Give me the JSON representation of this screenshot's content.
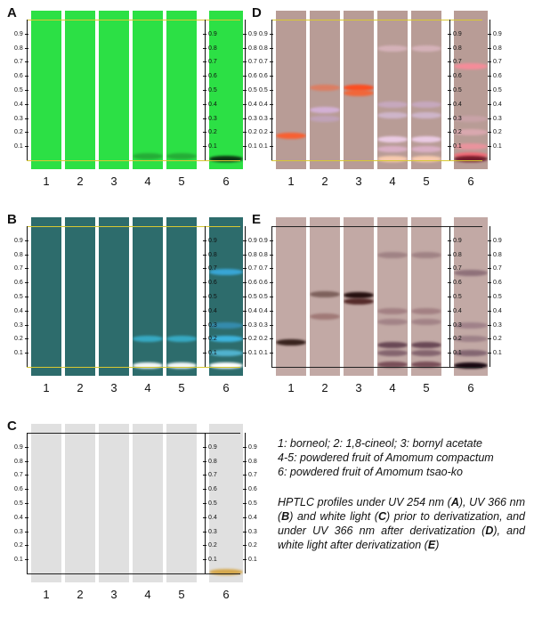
{
  "panels": [
    {
      "label": "A",
      "colors": {
        "plate": "#2ce045",
        "line": "#d8c832",
        "axis": "#111111"
      },
      "lanes": [
        {
          "number": "1",
          "bands": []
        },
        {
          "number": "2",
          "bands": []
        },
        {
          "number": "3",
          "bands": []
        },
        {
          "number": "4",
          "bands": [
            {
              "rf": 0.03,
              "color": "#1f7a2a",
              "opacity": 0.5
            }
          ]
        },
        {
          "number": "5",
          "bands": [
            {
              "rf": 0.03,
              "color": "#1f7a2a",
              "opacity": 0.5
            }
          ]
        },
        {
          "number": "6",
          "bands": [
            {
              "rf": 0.01,
              "color": "#0a2a10",
              "opacity": 0.95
            }
          ]
        }
      ]
    },
    {
      "label": "B",
      "colors": {
        "plate": "#2d6c6c",
        "line": "#d8c832",
        "axis": "#111111"
      },
      "lanes": [
        {
          "number": "1",
          "bands": []
        },
        {
          "number": "2",
          "bands": []
        },
        {
          "number": "3",
          "bands": []
        },
        {
          "number": "4",
          "bands": [
            {
              "rf": 0.2,
              "color": "#39b8d8",
              "opacity": 0.8
            },
            {
              "rf": 0.01,
              "color": "#ffffff",
              "opacity": 0.95
            }
          ]
        },
        {
          "number": "5",
          "bands": [
            {
              "rf": 0.2,
              "color": "#39b8d8",
              "opacity": 0.8
            },
            {
              "rf": 0.01,
              "color": "#ffffff",
              "opacity": 0.95
            }
          ]
        },
        {
          "number": "6",
          "bands": [
            {
              "rf": 0.68,
              "color": "#3ab0e8",
              "opacity": 0.85
            },
            {
              "rf": 0.3,
              "color": "#3aa0d8",
              "opacity": 0.6
            },
            {
              "rf": 0.2,
              "color": "#40c0f0",
              "opacity": 0.85
            },
            {
              "rf": 0.1,
              "color": "#60d0f8",
              "opacity": 0.7
            },
            {
              "rf": 0.01,
              "color": "#ffffff",
              "opacity": 1
            }
          ]
        }
      ]
    },
    {
      "label": "C",
      "colors": {
        "plate": "#e0e0e0",
        "line": "#222222",
        "axis": "#111111"
      },
      "lanes": [
        {
          "number": "1",
          "bands": []
        },
        {
          "number": "2",
          "bands": []
        },
        {
          "number": "3",
          "bands": []
        },
        {
          "number": "4",
          "bands": []
        },
        {
          "number": "5",
          "bands": []
        },
        {
          "number": "6",
          "bands": [
            {
              "rf": 0.01,
              "color": "#d4a23c",
              "opacity": 0.9
            }
          ]
        }
      ]
    },
    {
      "label": "D",
      "colors": {
        "plate": "#b89c96",
        "line": "#d8c832",
        "axis": "#111111"
      },
      "lanes": [
        {
          "number": "1",
          "bands": [
            {
              "rf": 0.18,
              "color": "#ff5a28",
              "opacity": 0.9
            }
          ]
        },
        {
          "number": "2",
          "bands": [
            {
              "rf": 0.52,
              "color": "#ff6030",
              "opacity": 0.5
            },
            {
              "rf": 0.36,
              "color": "#d8b4e0",
              "opacity": 0.85
            },
            {
              "rf": 0.3,
              "color": "#c8a8d8",
              "opacity": 0.5
            }
          ]
        },
        {
          "number": "3",
          "bands": [
            {
              "rf": 0.52,
              "color": "#ff4a1c",
              "opacity": 0.95
            },
            {
              "rf": 0.48,
              "color": "#ff5a24",
              "opacity": 0.8
            }
          ]
        },
        {
          "number": "4",
          "bands": [
            {
              "rf": 0.8,
              "color": "#e8c0d0",
              "opacity": 0.6
            },
            {
              "rf": 0.4,
              "color": "#d0b0d8",
              "opacity": 0.6
            },
            {
              "rf": 0.32,
              "color": "#d8c0e0",
              "opacity": 0.7
            },
            {
              "rf": 0.15,
              "color": "#f0d0ec",
              "opacity": 0.9
            },
            {
              "rf": 0.08,
              "color": "#e8b8d8",
              "opacity": 0.7
            },
            {
              "rf": 0.01,
              "color": "#ffd0b0",
              "opacity": 0.9
            }
          ]
        },
        {
          "number": "5",
          "bands": [
            {
              "rf": 0.8,
              "color": "#e8c0d0",
              "opacity": 0.6
            },
            {
              "rf": 0.4,
              "color": "#d0b0d8",
              "opacity": 0.6
            },
            {
              "rf": 0.32,
              "color": "#d8c0e0",
              "opacity": 0.7
            },
            {
              "rf": 0.15,
              "color": "#f0d0ec",
              "opacity": 0.9
            },
            {
              "rf": 0.08,
              "color": "#e8b8d8",
              "opacity": 0.7
            },
            {
              "rf": 0.01,
              "color": "#ffd0b0",
              "opacity": 0.9
            }
          ]
        },
        {
          "number": "6",
          "bands": [
            {
              "rf": 0.67,
              "color": "#ff8a9a",
              "opacity": 0.85
            },
            {
              "rf": 0.3,
              "color": "#d8a8b8",
              "opacity": 0.5
            },
            {
              "rf": 0.2,
              "color": "#f0b0c0",
              "opacity": 0.6
            },
            {
              "rf": 0.1,
              "color": "#ff90a0",
              "opacity": 0.7
            },
            {
              "rf": 0.04,
              "color": "#ff6070",
              "opacity": 0.8
            },
            {
              "rf": 0.01,
              "color": "#6a1020",
              "opacity": 0.9
            }
          ]
        }
      ]
    },
    {
      "label": "E",
      "colors": {
        "plate": "#c2a9a5",
        "line": "#222222",
        "axis": "#111111"
      },
      "lanes": [
        {
          "number": "1",
          "bands": [
            {
              "rf": 0.18,
              "color": "#2a1510",
              "opacity": 0.9
            }
          ]
        },
        {
          "number": "2",
          "bands": [
            {
              "rf": 0.36,
              "color": "#8a5a58",
              "opacity": 0.6
            },
            {
              "rf": 0.52,
              "color": "#3a1a14",
              "opacity": 0.5
            }
          ]
        },
        {
          "number": "3",
          "bands": [
            {
              "rf": 0.51,
              "color": "#1e0808",
              "opacity": 0.95
            },
            {
              "rf": 0.47,
              "color": "#3a0c0c",
              "opacity": 0.8
            }
          ]
        },
        {
          "number": "4",
          "bands": [
            {
              "rf": 0.8,
              "color": "#8a6a70",
              "opacity": 0.6
            },
            {
              "rf": 0.4,
              "color": "#8a6068",
              "opacity": 0.55
            },
            {
              "rf": 0.32,
              "color": "#8a6570",
              "opacity": 0.55
            },
            {
              "rf": 0.16,
              "color": "#5a3848",
              "opacity": 0.85
            },
            {
              "rf": 0.1,
              "color": "#6a4858",
              "opacity": 0.7
            },
            {
              "rf": 0.02,
              "color": "#5a2838",
              "opacity": 0.7
            }
          ]
        },
        {
          "number": "5",
          "bands": [
            {
              "rf": 0.8,
              "color": "#8a6a70",
              "opacity": 0.6
            },
            {
              "rf": 0.4,
              "color": "#8a6068",
              "opacity": 0.55
            },
            {
              "rf": 0.32,
              "color": "#8a6570",
              "opacity": 0.55
            },
            {
              "rf": 0.16,
              "color": "#5a3848",
              "opacity": 0.85
            },
            {
              "rf": 0.1,
              "color": "#6a4858",
              "opacity": 0.7
            },
            {
              "rf": 0.02,
              "color": "#5a2838",
              "opacity": 0.7
            }
          ]
        },
        {
          "number": "6",
          "bands": [
            {
              "rf": 0.67,
              "color": "#7a5a68",
              "opacity": 0.7
            },
            {
              "rf": 0.3,
              "color": "#8a6878",
              "opacity": 0.6
            },
            {
              "rf": 0.2,
              "color": "#806070",
              "opacity": 0.55
            },
            {
              "rf": 0.1,
              "color": "#5a3a50",
              "opacity": 0.6
            },
            {
              "rf": 0.01,
              "color": "#10000a",
              "opacity": 0.95
            }
          ]
        }
      ]
    }
  ],
  "axis_ticks": [
    "0.1",
    "0.2",
    "0.3",
    "0.4",
    "0.5",
    "0.6",
    "0.7",
    "0.8",
    "0.9"
  ],
  "legend": {
    "line1": "1: borneol; 2: 1,8-cineol; 3: bornyl acetate",
    "line2": "4-5: powdered fruit of Amomum compactum",
    "line3": "6: powdered fruit of Amomum tsao-ko",
    "caption_parts": [
      {
        "text": "HPTLC profiles under UV 254 nm (",
        "bold": false
      },
      {
        "text": "A",
        "bold": true
      },
      {
        "text": "), UV 366 nm (",
        "bold": false
      },
      {
        "text": "B",
        "bold": true
      },
      {
        "text": ") and white light (",
        "bold": false
      },
      {
        "text": "C",
        "bold": true
      },
      {
        "text": ") prior to derivatization, and under UV 366 nm after derivatization (",
        "bold": false
      },
      {
        "text": "D",
        "bold": true
      },
      {
        "text": "), and white light after derivatization (",
        "bold": false
      },
      {
        "text": "E",
        "bold": true
      },
      {
        "text": ")",
        "bold": false
      }
    ]
  }
}
